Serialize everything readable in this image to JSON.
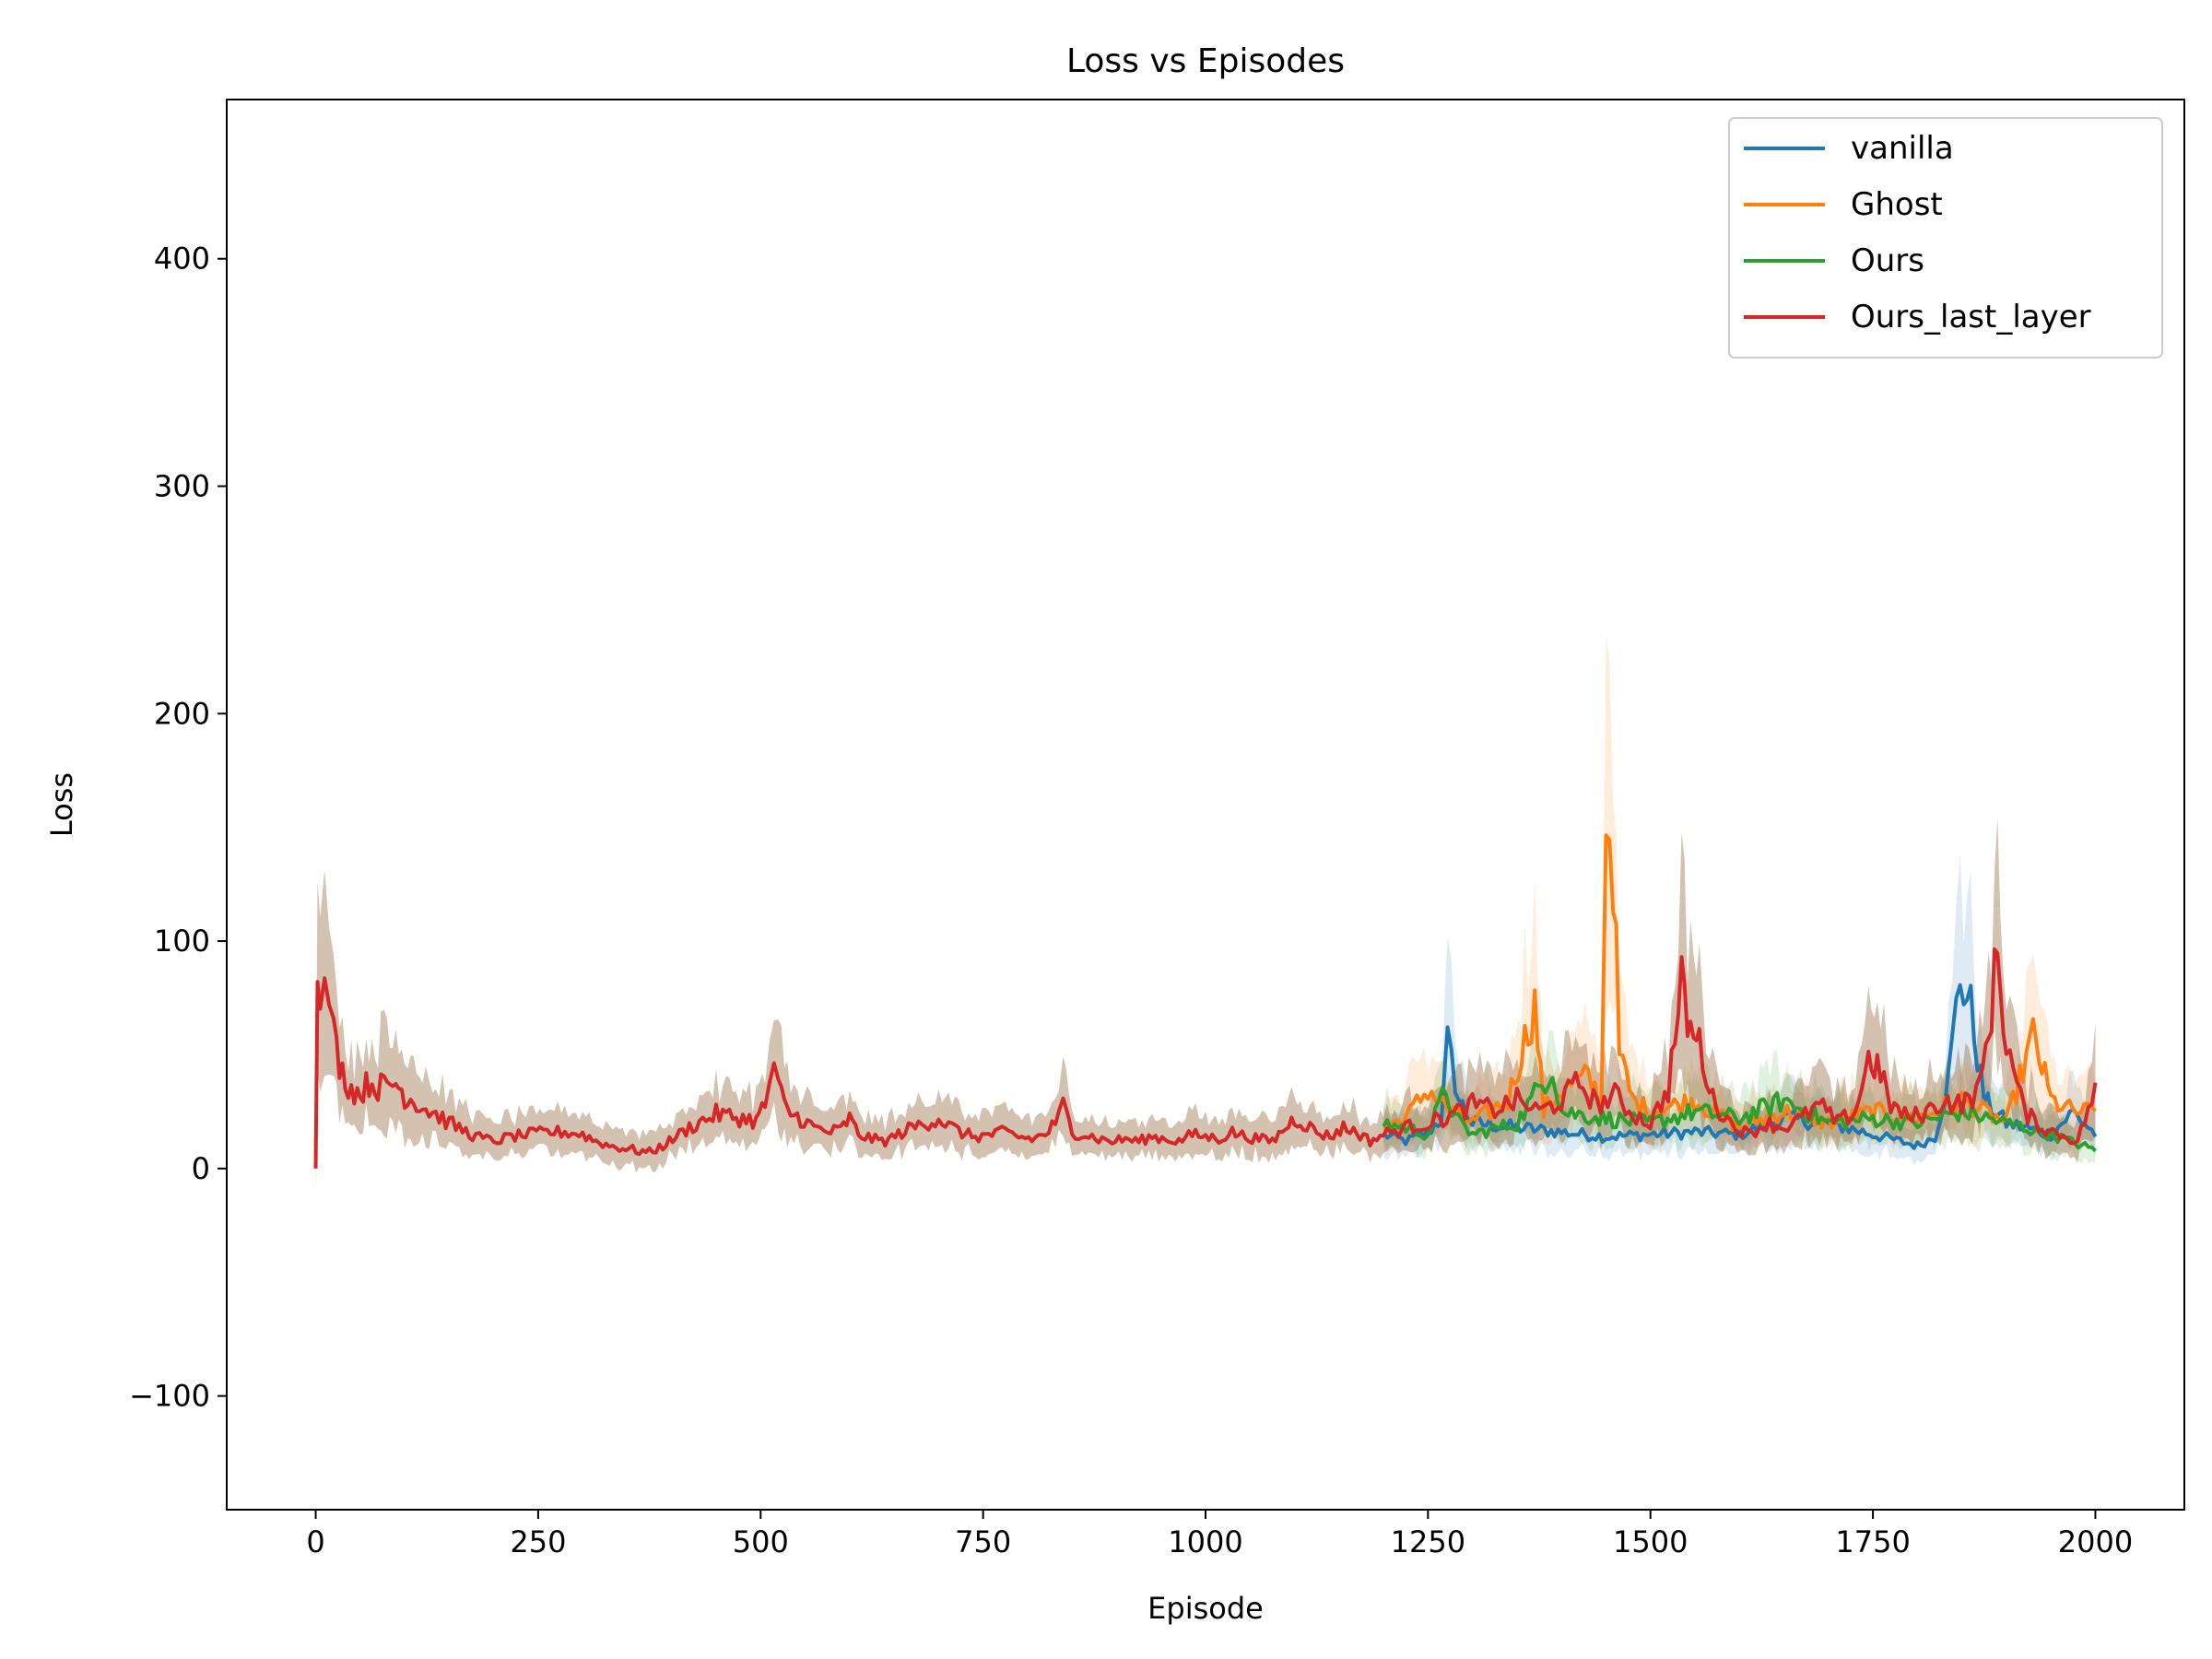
{
  "chart_data": {
    "type": "line",
    "title": "Loss vs Episodes",
    "xlabel": "Episode",
    "ylabel": "Loss",
    "xlim": [
      -100,
      2100
    ],
    "ylim": [
      -150,
      470
    ],
    "xticks": [
      0,
      250,
      500,
      750,
      1000,
      1250,
      1500,
      1750,
      2000
    ],
    "xtick_labels": [
      "0",
      "250",
      "500",
      "750",
      "1000",
      "1250",
      "1500",
      "1750",
      "2000"
    ],
    "yticks": [
      -100,
      0,
      100,
      200,
      300,
      400
    ],
    "ytick_labels": [
      "−100",
      "0",
      "100",
      "200",
      "300",
      "400"
    ],
    "grid": false,
    "legend_position": "top-right",
    "series": [
      {
        "name": "vanilla",
        "color": "#1f77b4",
        "x": [
          1200,
          1225,
          1250,
          1265,
          1272,
          1285,
          1300,
          1350,
          1400,
          1450,
          1500,
          1550,
          1600,
          1650,
          1700,
          1750,
          1800,
          1820,
          1835,
          1848,
          1860,
          1875,
          1900,
          1950,
          1975,
          2000
        ],
        "y": [
          15,
          12,
          16,
          22,
          55,
          30,
          20,
          18,
          16,
          14,
          15,
          16,
          15,
          22,
          20,
          15,
          10,
          14,
          40,
          85,
          70,
          30,
          20,
          15,
          25,
          15
        ]
      },
      {
        "name": "Ghost",
        "color": "#ff7f0e",
        "x": [
          1200,
          1225,
          1250,
          1275,
          1300,
          1340,
          1370,
          1380,
          1400,
          1430,
          1445,
          1450,
          1458,
          1465,
          1480,
          1500,
          1550,
          1600,
          1650,
          1700,
          1750,
          1800,
          1850,
          1900,
          1930,
          1940,
          1950,
          1975,
          2000
        ],
        "y": [
          18,
          22,
          35,
          25,
          20,
          30,
          72,
          25,
          35,
          40,
          30,
          160,
          135,
          50,
          30,
          25,
          30,
          18,
          25,
          20,
          25,
          22,
          30,
          20,
          58,
          45,
          30,
          25,
          25
        ]
      },
      {
        "name": "Ours",
        "color": "#2ca02c",
        "x": [
          1200,
          1225,
          1250,
          1270,
          1280,
          1300,
          1350,
          1390,
          1400,
          1450,
          1500,
          1550,
          1600,
          1650,
          1700,
          1750,
          1800,
          1850,
          1900,
          1950,
          2000
        ],
        "y": [
          20,
          18,
          15,
          35,
          22,
          15,
          20,
          45,
          25,
          22,
          20,
          25,
          22,
          30,
          20,
          22,
          20,
          25,
          20,
          15,
          8
        ]
      },
      {
        "name": "Ours_last_layer",
        "color": "#d62728",
        "x": [
          0,
          2,
          5,
          10,
          15,
          20,
          30,
          40,
          50,
          60,
          70,
          80,
          90,
          100,
          110,
          120,
          135,
          150,
          165,
          180,
          200,
          220,
          240,
          260,
          280,
          300,
          315,
          330,
          345,
          360,
          375,
          390,
          405,
          420,
          435,
          450,
          465,
          480,
          495,
          505,
          510,
          515,
          520,
          530,
          545,
          560,
          575,
          590,
          600,
          610,
          625,
          640,
          655,
          670,
          685,
          700,
          715,
          730,
          745,
          760,
          775,
          790,
          805,
          820,
          835,
          840,
          850,
          865,
          880,
          895,
          910,
          925,
          940,
          955,
          970,
          985,
          1000,
          1015,
          1030,
          1045,
          1060,
          1075,
          1090,
          1100,
          1110,
          1125,
          1140,
          1155,
          1170,
          1185,
          1200,
          1225,
          1250,
          1275,
          1300,
          1325,
          1350,
          1375,
          1400,
          1420,
          1440,
          1460,
          1480,
          1500,
          1520,
          1535,
          1545,
          1555,
          1570,
          1590,
          1610,
          1630,
          1650,
          1670,
          1690,
          1710,
          1730,
          1745,
          1755,
          1770,
          1790,
          1810,
          1830,
          1850,
          1870,
          1880,
          1890,
          1900,
          1920,
          1940,
          1960,
          1980,
          2000
        ],
        "y": [
          0,
          98,
          65,
          75,
          80,
          58,
          42,
          35,
          33,
          38,
          36,
          36,
          38,
          32,
          30,
          27,
          24,
          20,
          17,
          14,
          12,
          14,
          15,
          16,
          16,
          15,
          12,
          10,
          9,
          8,
          7,
          10,
          14,
          18,
          21,
          24,
          23,
          22,
          21,
          28,
          38,
          45,
          35,
          25,
          22,
          18,
          16,
          17,
          22,
          15,
          13,
          12,
          15,
          18,
          20,
          22,
          18,
          15,
          14,
          15,
          16,
          14,
          13,
          15,
          22,
          28,
          16,
          15,
          13,
          12,
          13,
          12,
          14,
          13,
          12,
          15,
          14,
          13,
          16,
          14,
          13,
          12,
          18,
          22,
          20,
          16,
          14,
          18,
          16,
          12,
          15,
          18,
          20,
          23,
          28,
          26,
          30,
          25,
          30,
          38,
          28,
          32,
          24,
          20,
          35,
          80,
          60,
          55,
          30,
          20,
          15,
          20,
          18,
          22,
          28,
          20,
          25,
          48,
          45,
          28,
          22,
          25,
          30,
          28,
          35,
          60,
          95,
          55,
          25,
          18,
          15,
          12,
          35
        ]
      }
    ]
  }
}
